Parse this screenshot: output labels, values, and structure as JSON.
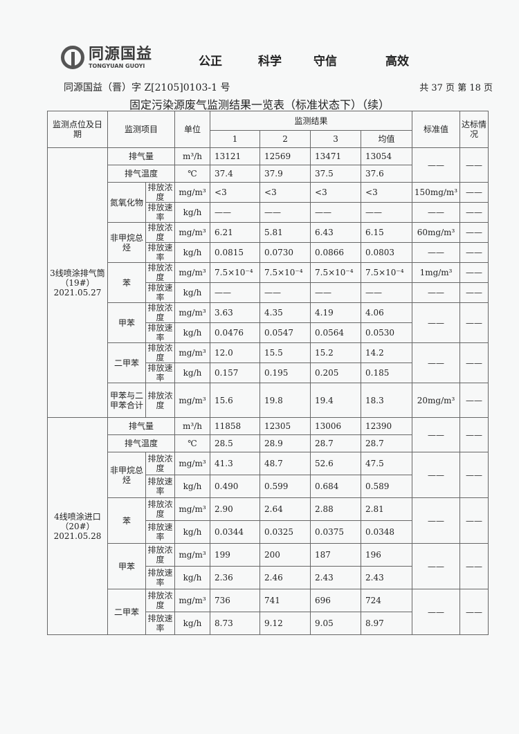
{
  "header": {
    "logo_cn": "同源国益",
    "logo_en": "TONGYUAN GUOYI",
    "slogan": [
      "公正",
      "科学",
      "守信",
      "高效"
    ],
    "doc_number": "同源国益（晋）字 Z[2105]0103-1 号",
    "page_info": "共 37 页  第 18 页",
    "title": "固定污染源废气监测结果一览表（标准状态下）（续）"
  },
  "table": {
    "headers": {
      "location": "监测点位及日期",
      "item": "监测项目",
      "unit": "单位",
      "results": "监测结果",
      "r1": "1",
      "r2": "2",
      "r3": "3",
      "avg": "均值",
      "standard": "标准值",
      "compliance": "达标情况"
    },
    "blocks": [
      {
        "location": "3线喷涂排气筒（19#）2021.05.27",
        "rows": [
          {
            "item": "排气量",
            "unit": "m³/h",
            "v": [
              "13121",
              "12569",
              "13471",
              "13054"
            ],
            "std": "——",
            "ok": "——",
            "stdspan": 2
          },
          {
            "item": "排气温度",
            "unit": "℃",
            "v": [
              "37.4",
              "37.9",
              "37.5",
              "37.6"
            ]
          },
          {
            "item": "氮氧化物",
            "sub": "排放浓度",
            "unit": "mg/m³",
            "v": [
              "<3",
              "<3",
              "<3",
              "<3"
            ],
            "std": "150mg/m³",
            "ok": "——",
            "itemspan": 2
          },
          {
            "sub": "排放速率",
            "unit": "kg/h",
            "v": [
              "——",
              "——",
              "——",
              "——"
            ],
            "std": "——",
            "ok": "——"
          },
          {
            "item": "非甲烷总烃",
            "sub": "排放浓度",
            "unit": "mg/m³",
            "v": [
              "6.21",
              "5.81",
              "6.43",
              "6.15"
            ],
            "std": "60mg/m³",
            "ok": "——",
            "itemspan": 2
          },
          {
            "sub": "排放速率",
            "unit": "kg/h",
            "v": [
              "0.0815",
              "0.0730",
              "0.0866",
              "0.0803"
            ],
            "std": "——",
            "ok": "——"
          },
          {
            "item": "苯",
            "sub": "排放浓度",
            "unit": "mg/m³",
            "v": [
              "7.5×10⁻⁴",
              "7.5×10⁻⁴",
              "7.5×10⁻⁴",
              "7.5×10⁻⁴"
            ],
            "std": "1mg/m³",
            "ok": "——",
            "itemspan": 2
          },
          {
            "sub": "排放速率",
            "unit": "kg/h",
            "v": [
              "——",
              "——",
              "——",
              "——"
            ],
            "std": "——",
            "ok": "——"
          },
          {
            "item": "甲苯",
            "sub": "排放浓度",
            "unit": "mg/m³",
            "v": [
              "3.63",
              "4.35",
              "4.19",
              "4.06"
            ],
            "std": "——",
            "ok": "——",
            "itemspan": 2,
            "stdspan": 2
          },
          {
            "sub": "排放速率",
            "unit": "kg/h",
            "v": [
              "0.0476",
              "0.0547",
              "0.0564",
              "0.0530"
            ]
          },
          {
            "item": "二甲苯",
            "sub": "排放浓度",
            "unit": "mg/m³",
            "v": [
              "12.0",
              "15.5",
              "15.2",
              "14.2"
            ],
            "std": "——",
            "ok": "——",
            "itemspan": 2,
            "stdspan": 2
          },
          {
            "sub": "排放速率",
            "unit": "kg/h",
            "v": [
              "0.157",
              "0.195",
              "0.205",
              "0.185"
            ]
          },
          {
            "item": "甲苯与二甲苯合计",
            "sub": "排放浓度",
            "unit": "mg/m³",
            "v": [
              "15.6",
              "19.8",
              "19.4",
              "18.3"
            ],
            "std": "20mg/m³",
            "ok": "——",
            "tall": true
          }
        ]
      },
      {
        "location": "4线喷涂进口（20#）2021.05.28",
        "rows": [
          {
            "item": "排气量",
            "unit": "m³/h",
            "v": [
              "11858",
              "12305",
              "13006",
              "12390"
            ],
            "std": "——",
            "ok": "——",
            "stdspan": 2
          },
          {
            "item": "排气温度",
            "unit": "℃",
            "v": [
              "28.5",
              "28.9",
              "28.7",
              "28.7"
            ]
          },
          {
            "item": "非甲烷总烃",
            "sub": "排放浓度",
            "unit": "mg/m³",
            "v": [
              "41.3",
              "48.7",
              "52.6",
              "47.5"
            ],
            "std": "——",
            "ok": "——",
            "itemspan": 2,
            "stdspan": 2
          },
          {
            "sub": "排放速率",
            "unit": "kg/h",
            "v": [
              "0.490",
              "0.599",
              "0.684",
              "0.589"
            ]
          },
          {
            "item": "苯",
            "sub": "排放浓度",
            "unit": "mg/m³",
            "v": [
              "2.90",
              "2.64",
              "2.88",
              "2.81"
            ],
            "std": "——",
            "ok": "——",
            "itemspan": 2,
            "stdspan": 2
          },
          {
            "sub": "排放速率",
            "unit": "kg/h",
            "v": [
              "0.0344",
              "0.0325",
              "0.0375",
              "0.0348"
            ]
          },
          {
            "item": "甲苯",
            "sub": "排放浓度",
            "unit": "mg/m³",
            "v": [
              "199",
              "200",
              "187",
              "196"
            ],
            "std": "——",
            "ok": "——",
            "itemspan": 2,
            "stdspan": 2
          },
          {
            "sub": "排放速率",
            "unit": "kg/h",
            "v": [
              "2.36",
              "2.46",
              "2.43",
              "2.43"
            ]
          },
          {
            "item": "二甲苯",
            "sub": "排放浓度",
            "unit": "mg/m³",
            "v": [
              "736",
              "741",
              "696",
              "724"
            ],
            "std": "——",
            "ok": "——",
            "itemspan": 2,
            "stdspan": 2
          },
          {
            "sub": "排放速率",
            "unit": "kg/h",
            "v": [
              "8.73",
              "9.12",
              "9.05",
              "8.97"
            ]
          }
        ]
      }
    ]
  }
}
